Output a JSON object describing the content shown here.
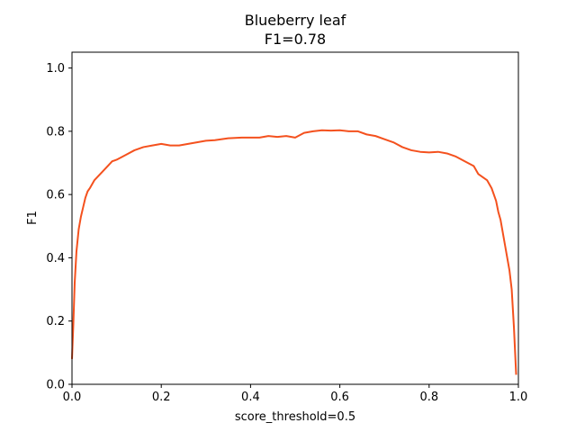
{
  "chart_data": {
    "type": "line",
    "title": "Blueberry leaf",
    "subtitle": "F1=0.78",
    "xlabel": "score_threshold=0.5",
    "ylabel": "F1",
    "xlim": [
      0,
      1
    ],
    "ylim": [
      0,
      1.05
    ],
    "xticks": [
      "0.0",
      "0.2",
      "0.4",
      "0.6",
      "0.8",
      "1.0"
    ],
    "yticks": [
      "0.0",
      "0.2",
      "0.4",
      "0.6",
      "0.8",
      "1.0"
    ],
    "grid": false,
    "legend": "none",
    "line_color": "#f4511e",
    "series": [
      {
        "x": [
          0.0,
          0.003,
          0.006,
          0.01,
          0.015,
          0.02,
          0.025,
          0.03,
          0.035,
          0.04,
          0.05,
          0.06,
          0.07,
          0.08,
          0.09,
          0.1,
          0.12,
          0.14,
          0.16,
          0.18,
          0.2,
          0.22,
          0.24,
          0.26,
          0.28,
          0.3,
          0.32,
          0.35,
          0.38,
          0.4,
          0.42,
          0.44,
          0.46,
          0.48,
          0.5,
          0.52,
          0.54,
          0.56,
          0.58,
          0.6,
          0.62,
          0.64,
          0.66,
          0.68,
          0.7,
          0.72,
          0.74,
          0.76,
          0.78,
          0.8,
          0.82,
          0.84,
          0.86,
          0.88,
          0.9,
          0.91,
          0.92,
          0.93,
          0.94,
          0.95,
          0.955,
          0.96,
          0.965,
          0.97,
          0.975,
          0.98,
          0.985,
          0.99,
          0.995
        ],
        "y": [
          0.08,
          0.19,
          0.32,
          0.42,
          0.49,
          0.53,
          0.56,
          0.59,
          0.61,
          0.62,
          0.645,
          0.66,
          0.675,
          0.69,
          0.705,
          0.71,
          0.725,
          0.74,
          0.75,
          0.755,
          0.76,
          0.755,
          0.755,
          0.76,
          0.765,
          0.77,
          0.772,
          0.778,
          0.78,
          0.78,
          0.78,
          0.785,
          0.782,
          0.785,
          0.78,
          0.795,
          0.8,
          0.803,
          0.802,
          0.803,
          0.8,
          0.8,
          0.79,
          0.785,
          0.775,
          0.765,
          0.75,
          0.74,
          0.735,
          0.733,
          0.735,
          0.73,
          0.72,
          0.705,
          0.69,
          0.665,
          0.655,
          0.645,
          0.62,
          0.58,
          0.545,
          0.52,
          0.48,
          0.44,
          0.4,
          0.36,
          0.3,
          0.18,
          0.03
        ]
      }
    ]
  }
}
